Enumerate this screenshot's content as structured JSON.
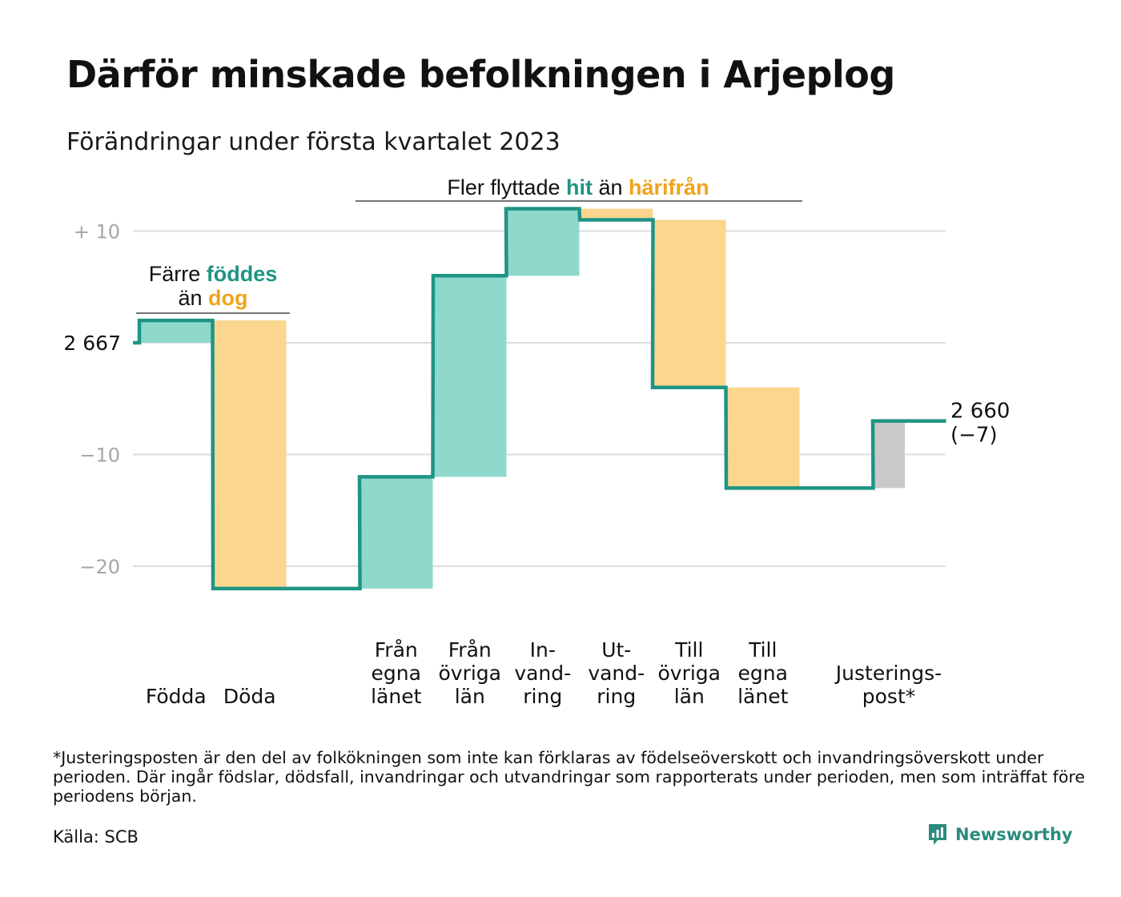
{
  "title": "Därför minskade befolkningen i Arjeplog",
  "subtitle": "Förändringar under första kvartalet 2023",
  "colors": {
    "increase_fill": "#8fd8cc",
    "decrease_fill": "#fbd68e",
    "adjustment_fill": "#c9c9c9",
    "line": "#1e9485",
    "accent_teal": "#1e9485",
    "accent_orange": "#f0a31b",
    "grid": "#dddddd",
    "axis_text": "#a6a6a6"
  },
  "annotations": {
    "births": {
      "prefix": "Färre ",
      "hl1": "föddes",
      "line2_prefix": "än ",
      "hl2": "dog"
    },
    "migration": {
      "prefix": "Fler flyttade ",
      "hl1": "hit",
      "middle": " än ",
      "hl2": "härifrån"
    }
  },
  "chart_data": {
    "type": "waterfall",
    "start": {
      "label": "2 667",
      "value": 2667
    },
    "end": {
      "label": "2 660",
      "change_label": "(−7)",
      "value": 2660
    },
    "y_axis": {
      "reference": 2667,
      "ticks": [
        {
          "label": "+ 10",
          "value": 10
        },
        {
          "label": "−10",
          "value": -10
        },
        {
          "label": "−20",
          "value": -20
        }
      ],
      "grid": true
    },
    "steps": [
      {
        "label_lines": [
          "Födda"
        ],
        "value": 2,
        "kind": "increase"
      },
      {
        "label_lines": [
          "Döda"
        ],
        "value": -24,
        "kind": "decrease"
      },
      {
        "label_lines": [],
        "value": 0,
        "kind": "gap"
      },
      {
        "label_lines": [
          "Från",
          "egna",
          "länet"
        ],
        "value": 10,
        "kind": "increase"
      },
      {
        "label_lines": [
          "Från",
          "övriga",
          "län"
        ],
        "value": 18,
        "kind": "increase"
      },
      {
        "label_lines": [
          "In-",
          "vand-",
          "ring"
        ],
        "value": 6,
        "kind": "increase"
      },
      {
        "label_lines": [
          "Ut-",
          "vand-",
          "ring"
        ],
        "value": -1,
        "kind": "decrease"
      },
      {
        "label_lines": [
          "Till",
          "övriga",
          "län"
        ],
        "value": -15,
        "kind": "decrease"
      },
      {
        "label_lines": [
          "Till",
          "egna",
          "länet"
        ],
        "value": -9,
        "kind": "decrease"
      },
      {
        "label_lines": [],
        "value": 0,
        "kind": "gap"
      },
      {
        "label_lines": [
          "Justerings-",
          "post*"
        ],
        "value": 6,
        "kind": "adjustment"
      }
    ]
  },
  "footnote": "*Justeringsposten är den del av folkökningen som inte kan förklaras av födelseöverskott och invandringsöverskott under perioden. Där ingår födslar, dödsfall, invandringar och utvandringar som rapporterats under perioden, men som inträffat före periodens början.",
  "source": "Källa: SCB",
  "brand": {
    "name": "Newsworthy",
    "icon": "newsworthy-logo-icon"
  }
}
